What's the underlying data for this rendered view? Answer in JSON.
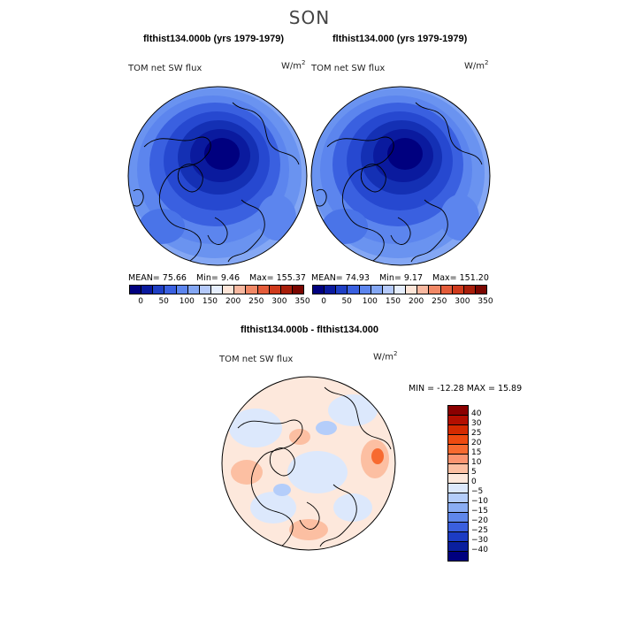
{
  "season": "SON",
  "panel_left": {
    "title": "flthist134.000b (yrs 1979-1979)",
    "field_label": "TOM net SW flux",
    "units_base": "W/m",
    "units_exp": "2",
    "mean_text": "MEAN=   75.66",
    "min_text": "Min=     9.46",
    "max_text": "Max=  155.37"
  },
  "panel_right": {
    "title": "flthist134.000 (yrs 1979-1979)",
    "field_label": "TOM net SW flux",
    "units_base": "W/m",
    "units_exp": "2",
    "mean_text": "MEAN=   74.93",
    "min_text": "Min=     9.17",
    "max_text": "Max=  151.20"
  },
  "colorbar_top": {
    "colors": [
      "#00007f",
      "#0a1a9e",
      "#1f3fc4",
      "#3a60e0",
      "#5c85ee",
      "#84a7f4",
      "#b4c9fa",
      "#e6eefd",
      "#fde5d8",
      "#f8b8a0",
      "#f08866",
      "#e45c3a",
      "#cf3a1c",
      "#a81e0a",
      "#7a0600"
    ],
    "tick_labels": [
      "0",
      "50",
      "100",
      "150",
      "200",
      "250",
      "300",
      "350"
    ]
  },
  "panel_diff": {
    "title": "flthist134.000b - flthist134.000",
    "field_label": "TOM net SW flux",
    "units_base": "W/m",
    "units_exp": "2",
    "minmax_text": "MIN = -12.28  MAX =  15.89"
  },
  "colorbar_diff": {
    "colors": [
      "#8b0000",
      "#b30f00",
      "#d42a00",
      "#ee4a10",
      "#f76a30",
      "#fb9470",
      "#fcbfa2",
      "#fde8dc",
      "#dce8fc",
      "#b4cdfa",
      "#8aadf3",
      "#5f87ea",
      "#3a5fde",
      "#1c3cc4",
      "#0a1f9e",
      "#00007f"
    ],
    "tick_labels": [
      "40",
      "30",
      "25",
      "20",
      "15",
      "10",
      "5",
      "0",
      "−5",
      "−10",
      "−15",
      "−20",
      "−25",
      "−30",
      "−40"
    ]
  }
}
